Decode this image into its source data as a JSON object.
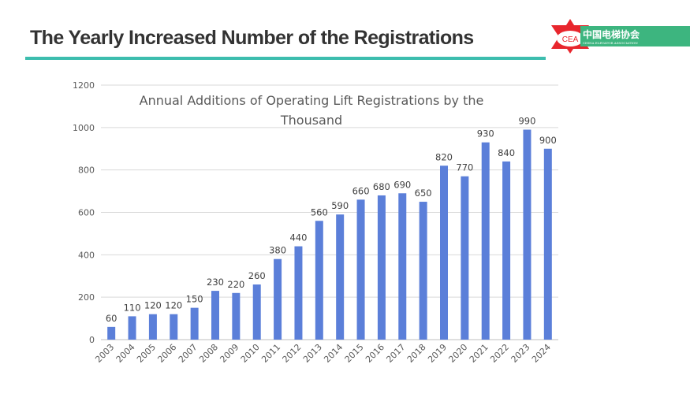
{
  "slide": {
    "title": "The Yearly Increased Number of the Registrations"
  },
  "logo": {
    "abbr": "CEA",
    "name_cn": "中国电梯协会",
    "name_en": "CHINA ELEVATOR ASSOCIATION",
    "colors": {
      "red": "#e8262d",
      "green": "#3db57f"
    }
  },
  "accent_color": "#3dbdae",
  "chart_data": {
    "type": "bar",
    "title_lines": [
      "Annual Additions of Operating Lift Registrations by the",
      "Thousand"
    ],
    "categories": [
      "2003",
      "2004",
      "2005",
      "2006",
      "2007",
      "2008",
      "2009",
      "2010",
      "2011",
      "2012",
      "2013",
      "2014",
      "2015",
      "2016",
      "2017",
      "2018",
      "2019",
      "2020",
      "2021",
      "2022",
      "2023",
      "2024"
    ],
    "values": [
      60,
      110,
      120,
      120,
      150,
      230,
      220,
      260,
      380,
      440,
      560,
      590,
      660,
      680,
      690,
      650,
      820,
      770,
      930,
      840,
      990,
      900
    ],
    "ylim": [
      0,
      1200
    ],
    "yticks": [
      0,
      200,
      400,
      600,
      800,
      1000,
      1200
    ],
    "grid": true,
    "data_labels": true,
    "bar_color": "#5b7fd9",
    "xlabel": "",
    "ylabel": ""
  }
}
